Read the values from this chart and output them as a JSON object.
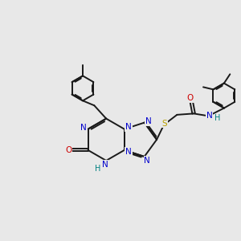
{
  "background_color": "#e8e8e8",
  "bond_color": "#1a1a1a",
  "atom_colors": {
    "N": "#0000cc",
    "O": "#cc0000",
    "S": "#b8a000",
    "H": "#008080",
    "C": "#1a1a1a"
  },
  "figsize": [
    3.0,
    3.0
  ],
  "dpi": 100
}
